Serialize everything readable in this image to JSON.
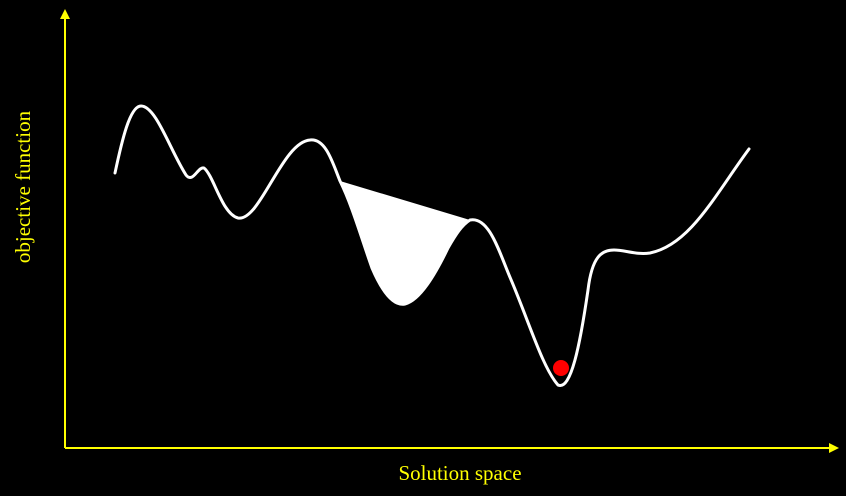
{
  "diagram": {
    "x_axis_label": "Solution space",
    "y_axis_label": "objective function",
    "colors": {
      "background": "#000000",
      "axis": "#ffff00",
      "label": "#ffff00",
      "curve": "#ffffff",
      "filled_basin": "#ffffff",
      "marker": "#ff0000"
    },
    "elements": {
      "curve": "objective-function-curve",
      "filled_basin": "local-minimum-basin",
      "marker": "global-minimum-marker"
    }
  }
}
